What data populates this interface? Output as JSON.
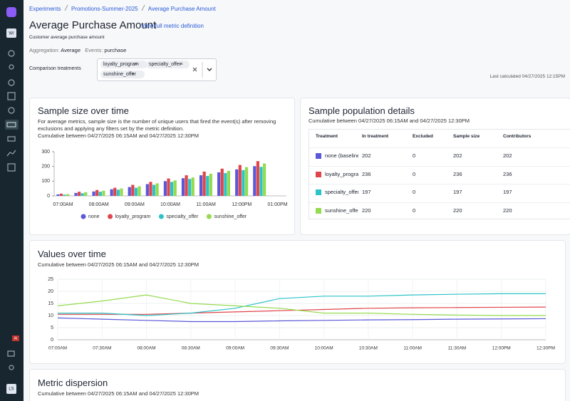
{
  "breadcrumb": [
    "Experiments",
    "Promotions-Summer-2025",
    "Average Purchase Amount"
  ],
  "sidebar": {
    "workspace": "W/",
    "ai_badge": "AI",
    "user": "LS"
  },
  "header": {
    "title": "Average Purchase Amount",
    "link": "View full metric definition",
    "description": "Customer average purchase amount",
    "aggregation_label": "Aggregation:",
    "aggregation": "Average",
    "events_label": "Events:",
    "events": "purchase"
  },
  "comparison": {
    "label": "Comparison treatments",
    "chips": [
      "loyalty_program",
      "specialty_offer",
      "sunshine_offer"
    ],
    "last_calculated": "Last calculated 04/27/2025 12:15PM"
  },
  "sample_size_card": {
    "title": "Sample size over time",
    "description": "For average metrics, sample size is the number of unique users that fired the event(s) after removing exclusions and applying any filters set by the metric definition.",
    "subtitle": "Cumulative between 04/27/2025 06:15AM and 04/27/2025 12:30PM"
  },
  "population_card": {
    "title": "Sample population details",
    "subtitle": "Cumulative between 04/27/2025 06:15AM and 04/27/2025 12:30PM",
    "table": {
      "columns": [
        "Treatment",
        "In treatment",
        "Excluded",
        "Sample size",
        "Contributors"
      ],
      "rows": [
        [
          "none (baseline)",
          "202",
          "0",
          "202",
          "202"
        ],
        [
          "loyalty_program",
          "236",
          "0",
          "236",
          "236"
        ],
        [
          "specialty_offer",
          "197",
          "0",
          "197",
          "197"
        ],
        [
          "sunshine_offer",
          "220",
          "0",
          "220",
          "220"
        ]
      ],
      "colors": [
        "#5b57d9",
        "#e0454a",
        "#2cc3c8",
        "#94db4e"
      ]
    }
  },
  "values_card": {
    "title": "Values over time",
    "subtitle": "Cumulative between 04/27/2025 06:15AM and 04/27/2025 12:30PM"
  },
  "dispersion_card": {
    "title": "Metric dispersion",
    "subtitle": "Cumulative between 04/27/2025 06:15AM and 04/27/2025 12:30PM"
  },
  "chart_data": [
    {
      "type": "bar",
      "categories": [
        "07:00AM",
        null,
        "08:00AM",
        null,
        "09:00AM",
        null,
        "10:00AM",
        null,
        "11:00AM",
        null,
        "12:00PM",
        null,
        "01:00PM"
      ],
      "series": [
        {
          "name": "none",
          "color": "#5b57d9",
          "values": [
            10,
            20,
            30,
            45,
            60,
            80,
            100,
            120,
            140,
            160,
            180,
            202,
            null
          ]
        },
        {
          "name": "loyalty_program",
          "color": "#e0454a",
          "values": [
            15,
            28,
            40,
            55,
            75,
            95,
            118,
            140,
            165,
            185,
            210,
            236,
            null
          ]
        },
        {
          "name": "specialty_offer",
          "color": "#2cc3c8",
          "values": [
            8,
            18,
            28,
            42,
            55,
            75,
            95,
            115,
            135,
            155,
            175,
            197,
            null
          ]
        },
        {
          "name": "sunshine_offer",
          "color": "#94db4e",
          "values": [
            12,
            25,
            35,
            50,
            65,
            85,
            105,
            125,
            150,
            170,
            195,
            220,
            null
          ]
        }
      ],
      "ylim": [
        0,
        300
      ],
      "yticks": [
        0,
        100,
        200,
        300
      ],
      "legend": "bottom"
    },
    {
      "type": "line",
      "categories": [
        "07:00AM",
        "07:30AM",
        "08:00AM",
        "08:30AM",
        "09:00AM",
        "09:30AM",
        "10:00AM",
        "10:30AM",
        "11:00AM",
        "11:30AM",
        "12:00PM",
        "12:30PM"
      ],
      "series": [
        {
          "name": "none",
          "color": "#5b57d9",
          "values": [
            9,
            8.5,
            8,
            7.5,
            7.5,
            7.8,
            8,
            8.2,
            8.3,
            8.5,
            8.6,
            8.7
          ]
        },
        {
          "name": "loyalty_program",
          "color": "#e0454a",
          "values": [
            10.5,
            10.5,
            10.5,
            11,
            11.5,
            12,
            12.5,
            13,
            13.2,
            13.3,
            13.4,
            13.5
          ]
        },
        {
          "name": "specialty_offer",
          "color": "#2cc3c8",
          "values": [
            11,
            11,
            10,
            11,
            13,
            17,
            18,
            18,
            18.5,
            18.8,
            19,
            19
          ]
        },
        {
          "name": "sunshine_offer",
          "color": "#94db4e",
          "values": [
            14,
            16,
            18.5,
            15,
            14,
            13,
            11,
            11,
            10.5,
            10.2,
            10,
            10
          ]
        }
      ],
      "ylim": [
        0,
        25
      ],
      "yticks": [
        0,
        5,
        10,
        15,
        20,
        25
      ],
      "grid": true
    }
  ]
}
